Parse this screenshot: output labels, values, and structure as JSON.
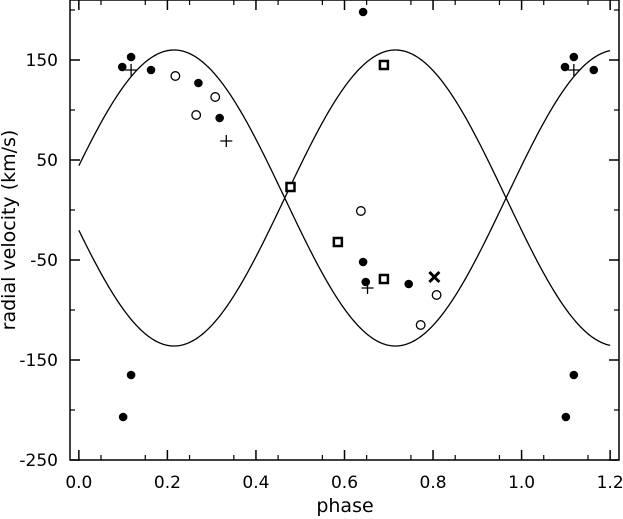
{
  "chart_data": {
    "type": "scatter",
    "xlabel": "phase",
    "ylabel": "radial velocity (km/s)",
    "xlim": [
      -0.02,
      1.22
    ],
    "ylim": [
      -250,
      210
    ],
    "x_ticks": [
      0.0,
      0.2,
      0.4,
      0.6,
      0.8,
      1.0,
      1.2
    ],
    "x_tick_labels": [
      "0.0",
      "0.2",
      "0.4",
      "0.6",
      "0.8",
      "1.0",
      "1.2"
    ],
    "y_ticks": [
      150,
      50,
      -50,
      -150,
      -250
    ],
    "y_tick_labels": [
      "150",
      "50",
      "-50",
      "-150",
      "-250"
    ],
    "grid": false,
    "legend": false,
    "curves": {
      "gamma": 12,
      "k1": 148,
      "k2": 148,
      "period_offset": 0.465,
      "x_range": [
        0.0,
        1.2
      ]
    },
    "series": [
      {
        "marker": "filled-circle",
        "points": [
          [
            0.098,
            143
          ],
          [
            0.118,
            153
          ],
          [
            0.163,
            140
          ],
          [
            0.27,
            127
          ],
          [
            0.318,
            92
          ],
          [
            0.642,
            -52
          ],
          [
            0.648,
            -72
          ],
          [
            0.745,
            -74
          ],
          [
            1.098,
            143
          ],
          [
            1.118,
            153
          ],
          [
            1.163,
            140
          ],
          [
            0.642,
            198
          ],
          [
            0.1,
            -207
          ],
          [
            0.118,
            -165
          ],
          [
            1.1,
            -207
          ],
          [
            1.118,
            -165
          ]
        ]
      },
      {
        "marker": "open-circle",
        "points": [
          [
            0.218,
            134
          ],
          [
            0.265,
            95
          ],
          [
            0.308,
            113
          ],
          [
            0.637,
            -1
          ],
          [
            0.772,
            -115
          ],
          [
            0.808,
            -85
          ]
        ]
      },
      {
        "marker": "plus",
        "points": [
          [
            0.118,
            140
          ],
          [
            0.333,
            69
          ],
          [
            0.652,
            -78
          ],
          [
            1.118,
            140
          ]
        ]
      },
      {
        "marker": "open-square",
        "points": [
          [
            0.478,
            23
          ],
          [
            0.585,
            -32
          ],
          [
            0.689,
            145
          ],
          [
            0.689,
            -69
          ]
        ]
      },
      {
        "marker": "cross",
        "points": [
          [
            0.803,
            -67
          ]
        ]
      }
    ]
  }
}
